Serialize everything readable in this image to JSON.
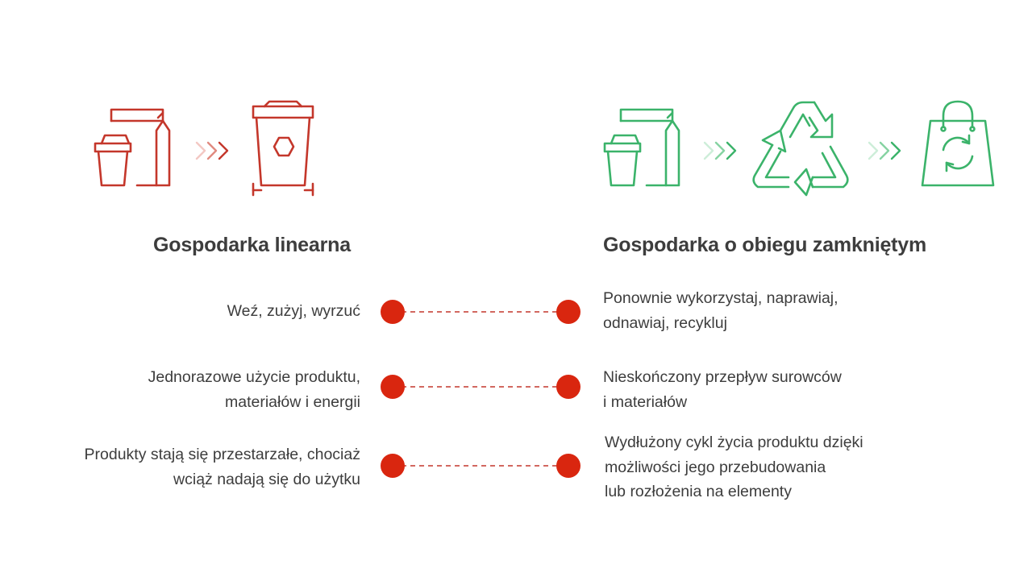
{
  "colors": {
    "linear_icon": "#c4372b",
    "circular_icon": "#3bb36a",
    "dot": "#d9260f",
    "dashed_line": "#c4372b",
    "text": "#3d3d3d"
  },
  "linear": {
    "title": "Gospodarka linearna",
    "icons": [
      "cup-and-bag-icon",
      "chevron-arrows-icon",
      "trash-bin-icon"
    ]
  },
  "circular": {
    "title": "Gospodarka o obiegu zamkniętym",
    "icons": [
      "cup-and-bag-icon",
      "chevron-arrows-icon",
      "recycle-icon",
      "chevron-arrows-icon",
      "shopping-bag-recycle-icon"
    ]
  },
  "rows": [
    {
      "left": "Weź, zużyj, wyrzuć",
      "right": "Ponownie wykorzystaj, naprawiaj,\nodnawiaj, recykluj"
    },
    {
      "left": "Jednorazowe użycie produktu,\nmateriałów i energii",
      "right": "Nieskończony przepływ surowców\ni materiałów"
    },
    {
      "left": "Produkty stają się przestarzałe, chociaż\nwciąż nadają się do użytku",
      "right": "Wydłużony cykl życia produktu dzięki\nmożliwości jego przebudowania\nlub rozłożenia na elementy"
    }
  ]
}
